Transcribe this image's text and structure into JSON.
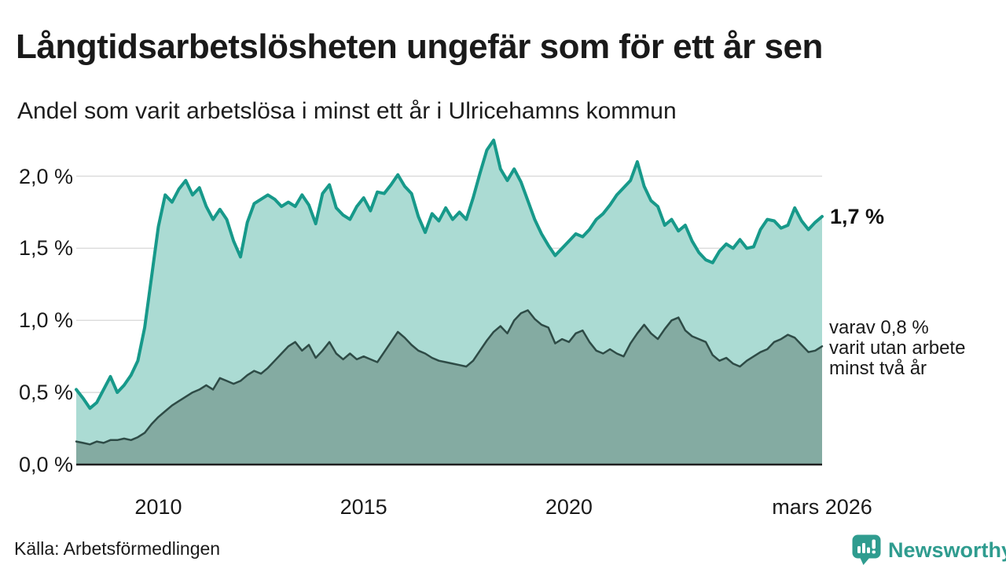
{
  "header": {
    "title": "Långtidsarbetslösheten ungefär som för ett år sen",
    "subtitle": "Andel som varit arbetslösa i minst ett år i Ulricehamns kommun"
  },
  "annotations": {
    "latest_total": "1,7 %",
    "secondary_lines": [
      "varav 0,8 %",
      "varit utan arbete",
      "minst två år"
    ]
  },
  "footer": {
    "source": "Källa: Arbetsförmedlingen",
    "brand": "Newsworthy"
  },
  "colors": {
    "total_line": "#17998a",
    "total_fill": "#abdbd3",
    "two_year_line": "#2e4b46",
    "two_year_fill": "#84aba2",
    "grid": "#dcdcdc",
    "axis": "#1f1f1f",
    "brand_teal": "#2f9c8f"
  },
  "chart_data": {
    "type": "area",
    "title": "Långtidsarbetslösheten ungefär som för ett år sen",
    "subtitle": "Andel som varit arbetslösa i minst ett år i Ulricehamns kommun",
    "unit": "%",
    "x_start": 2008.0,
    "x_end": 2026.1667,
    "x_step_years": 0.16667,
    "ylim": [
      0,
      2.3
    ],
    "grid": "horizontal",
    "y_ticks": [
      {
        "label": "0,0 %",
        "value": 0.0
      },
      {
        "label": "0,5 %",
        "value": 0.5
      },
      {
        "label": "1,0 %",
        "value": 1.0
      },
      {
        "label": "1,5 %",
        "value": 1.5
      },
      {
        "label": "2,0 %",
        "value": 2.0
      }
    ],
    "x_ticks": [
      {
        "label": "2010",
        "year": 2010
      },
      {
        "label": "2015",
        "year": 2015
      },
      {
        "label": "2020",
        "year": 2020
      },
      {
        "label": "mars 2026",
        "year": 2026.1667
      }
    ],
    "series": [
      {
        "key": "total-one-year",
        "name": "Andel arbetslösa minst ett år",
        "end_label": "1,7 %",
        "end_value": 1.7,
        "color": "#17998a",
        "fill": "#abdbd3",
        "line_width": 4,
        "values": [
          0.52,
          0.46,
          0.39,
          0.43,
          0.52,
          0.61,
          0.5,
          0.55,
          0.62,
          0.72,
          0.95,
          1.3,
          1.65,
          1.87,
          1.82,
          1.91,
          1.97,
          1.87,
          1.92,
          1.79,
          1.7,
          1.77,
          1.7,
          1.55,
          1.44,
          1.68,
          1.81,
          1.84,
          1.87,
          1.84,
          1.79,
          1.82,
          1.79,
          1.87,
          1.8,
          1.67,
          1.88,
          1.94,
          1.78,
          1.73,
          1.7,
          1.79,
          1.85,
          1.76,
          1.89,
          1.88,
          1.94,
          2.01,
          1.93,
          1.88,
          1.72,
          1.61,
          1.74,
          1.69,
          1.78,
          1.7,
          1.75,
          1.7,
          1.85,
          2.02,
          2.18,
          2.25,
          2.05,
          1.97,
          2.05,
          1.96,
          1.83,
          1.7,
          1.6,
          1.52,
          1.45,
          1.5,
          1.55,
          1.6,
          1.58,
          1.63,
          1.7,
          1.74,
          1.8,
          1.87,
          1.92,
          1.97,
          2.1,
          1.93,
          1.83,
          1.79,
          1.66,
          1.7,
          1.62,
          1.66,
          1.55,
          1.47,
          1.42,
          1.4,
          1.48,
          1.53,
          1.5,
          1.56,
          1.5,
          1.51,
          1.63,
          1.7,
          1.69,
          1.64,
          1.66,
          1.78,
          1.69,
          1.63,
          1.68,
          1.72
        ]
      },
      {
        "key": "two-years",
        "name": "varav utan arbete minst två år",
        "end_label": "varav 0,8 % varit utan arbete minst två år",
        "end_value": 0.8,
        "color": "#2e4b46",
        "fill": "#84aba2",
        "line_width": 2.5,
        "values": [
          0.16,
          0.15,
          0.14,
          0.16,
          0.15,
          0.17,
          0.17,
          0.18,
          0.17,
          0.19,
          0.22,
          0.28,
          0.33,
          0.37,
          0.41,
          0.44,
          0.47,
          0.5,
          0.52,
          0.55,
          0.52,
          0.6,
          0.58,
          0.56,
          0.58,
          0.62,
          0.65,
          0.63,
          0.67,
          0.72,
          0.77,
          0.82,
          0.85,
          0.79,
          0.83,
          0.74,
          0.79,
          0.85,
          0.77,
          0.73,
          0.77,
          0.73,
          0.75,
          0.73,
          0.71,
          0.78,
          0.85,
          0.92,
          0.88,
          0.83,
          0.79,
          0.77,
          0.74,
          0.72,
          0.71,
          0.7,
          0.69,
          0.68,
          0.72,
          0.79,
          0.86,
          0.92,
          0.96,
          0.91,
          1.0,
          1.05,
          1.07,
          1.01,
          0.97,
          0.95,
          0.84,
          0.87,
          0.85,
          0.91,
          0.93,
          0.85,
          0.79,
          0.77,
          0.8,
          0.77,
          0.75,
          0.84,
          0.91,
          0.97,
          0.91,
          0.87,
          0.94,
          1.0,
          1.02,
          0.93,
          0.89,
          0.87,
          0.85,
          0.76,
          0.72,
          0.74,
          0.7,
          0.68,
          0.72,
          0.75,
          0.78,
          0.8,
          0.85,
          0.87,
          0.9,
          0.88,
          0.83,
          0.78,
          0.79,
          0.82
        ]
      }
    ]
  }
}
